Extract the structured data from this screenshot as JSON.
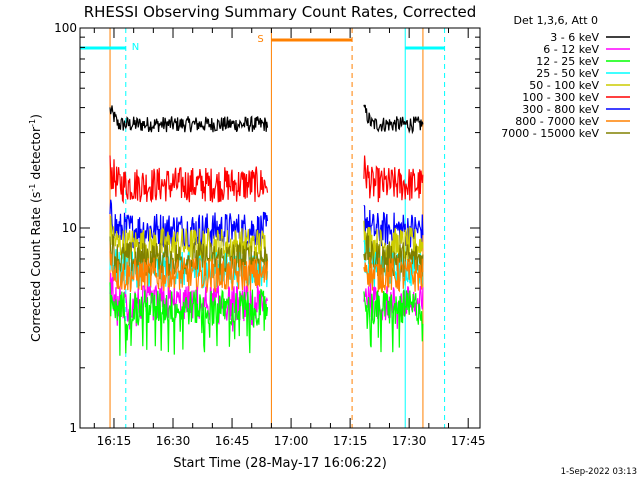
{
  "chart_data": {
    "type": "line",
    "title": "RHESSI Observing Summary Count Rates, Corrected",
    "xlabel": "Start Time (28-May-17 16:06:22)",
    "ylabel": "Corrected Count Rate (s^-1 detector^-1)",
    "ylabel_main": "Corrected Count Rate (s",
    "ylabel_sup": "-1",
    "ylabel_mid": " detector",
    "ylabel_sup2": "-1",
    "ylabel_end": ")",
    "y_scale": "log",
    "ylim": [
      1,
      100
    ],
    "y_tick_labels": [
      "1",
      "10",
      "100"
    ],
    "x_range": [
      "16:06:22",
      "17:48:00"
    ],
    "x_tick_labels": [
      "16:15",
      "16:30",
      "16:45",
      "17:00",
      "17:15",
      "17:30",
      "17:45"
    ],
    "grid": false,
    "legend_placement": "right",
    "legend_title": "Det 1,3,6, Att 0",
    "series": [
      {
        "name": "3 - 6 keV",
        "color": "#000000",
        "level": 33
      },
      {
        "name": "6 - 12 keV",
        "color": "#ff00ff",
        "level": 4.2
      },
      {
        "name": "12 - 25 keV",
        "color": "#00ff00",
        "level": 4.0
      },
      {
        "name": "25 - 50 keV",
        "color": "#00ffff",
        "level": 6.2
      },
      {
        "name": "50 - 100 keV",
        "color": "#cccc00",
        "level": 8.2
      },
      {
        "name": "100 - 300 keV",
        "color": "#ff0000",
        "level": 16.5
      },
      {
        "name": "300 - 800 keV",
        "color": "#0000ff",
        "level": 9.8
      },
      {
        "name": "800 - 7000 keV",
        "color": "#ff8000",
        "level": 5.8
      },
      {
        "name": "7000 - 15000 keV",
        "color": "#808000",
        "level": 7.0
      }
    ],
    "data_intervals": [
      {
        "start": "16:14:00",
        "end": "16:54:00"
      },
      {
        "start": "17:18:30",
        "end": "17:33:30"
      }
    ],
    "flags": [
      {
        "label": "N",
        "color": "#00ffff",
        "start": "16:06:22",
        "end": "16:18:00"
      },
      {
        "label": "S",
        "color": "#ff8000",
        "start": "16:55:00",
        "end": "17:15:30"
      },
      {
        "label": "",
        "color": "#00ffff",
        "start": "17:29:00",
        "end": "17:39:00"
      }
    ],
    "timestamp": "1-Sep-2022 03:13"
  }
}
